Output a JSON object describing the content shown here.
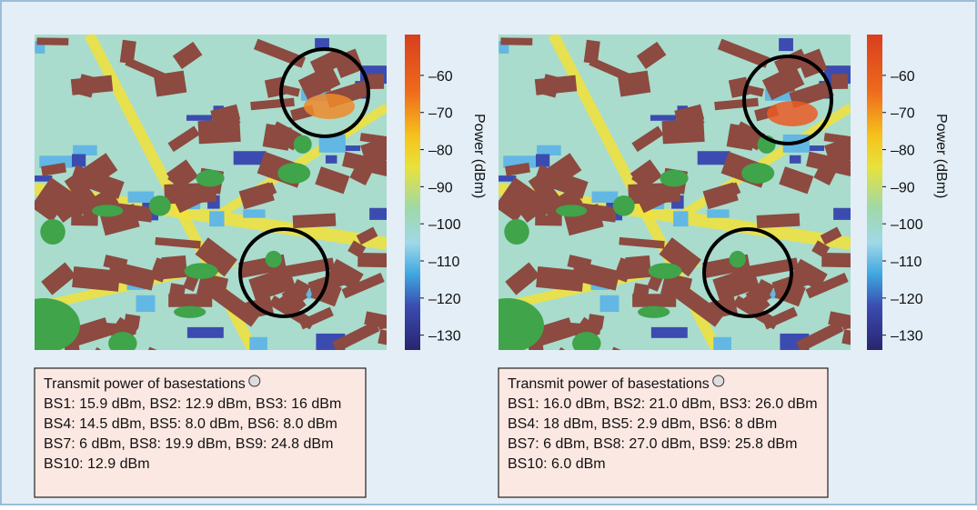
{
  "panels": [
    {
      "colorbar": {
        "label": "Power (dBm)",
        "range": [
          -134,
          -49
        ],
        "ticks": [
          {
            "value": -60,
            "label": "–60"
          },
          {
            "value": -70,
            "label": "–70"
          },
          {
            "value": -80,
            "label": "–80"
          },
          {
            "value": -90,
            "label": "–90"
          },
          {
            "value": -100,
            "label": "–100"
          },
          {
            "value": -110,
            "label": "–110"
          },
          {
            "value": -120,
            "label": "–120"
          },
          {
            "value": -130,
            "label": "–130"
          }
        ]
      },
      "caption": {
        "title": "Transmit power of basestations",
        "lines": [
          "BS1: 15.9 dBm, BS2: 12.9 dBm, BS3: 16 dBm",
          "BS4: 14.5 dBm, BS5: 8.0 dBm, BS6: 8.0 dBm",
          "BS7: 6 dBm, BS8: 19.9 dBm, BS9: 24.8 dBm",
          "BS10: 12.9 dBm"
        ]
      }
    },
    {
      "colorbar": {
        "label": "Power (dBm)",
        "range": [
          -134,
          -49
        ],
        "ticks": [
          {
            "value": -60,
            "label": "–60"
          },
          {
            "value": -70,
            "label": "–70"
          },
          {
            "value": -80,
            "label": "–80"
          },
          {
            "value": -90,
            "label": "–90"
          },
          {
            "value": -100,
            "label": "–100"
          },
          {
            "value": -110,
            "label": "–110"
          },
          {
            "value": -120,
            "label": "–120"
          },
          {
            "value": -130,
            "label": "–130"
          }
        ]
      },
      "caption": {
        "title": "Transmit power of basestations",
        "lines": [
          "BS1: 16.0 dBm, BS2: 21.0 dBm, BS3: 26.0 dBm",
          "BS4: 18 dBm, BS5: 2.9 dBm, BS6: 8 dBm",
          "BS7: 6 dBm, BS8: 27.0 dBm, BS9: 25.8 dBm",
          "BS10: 6.0 dBm"
        ]
      }
    }
  ]
}
